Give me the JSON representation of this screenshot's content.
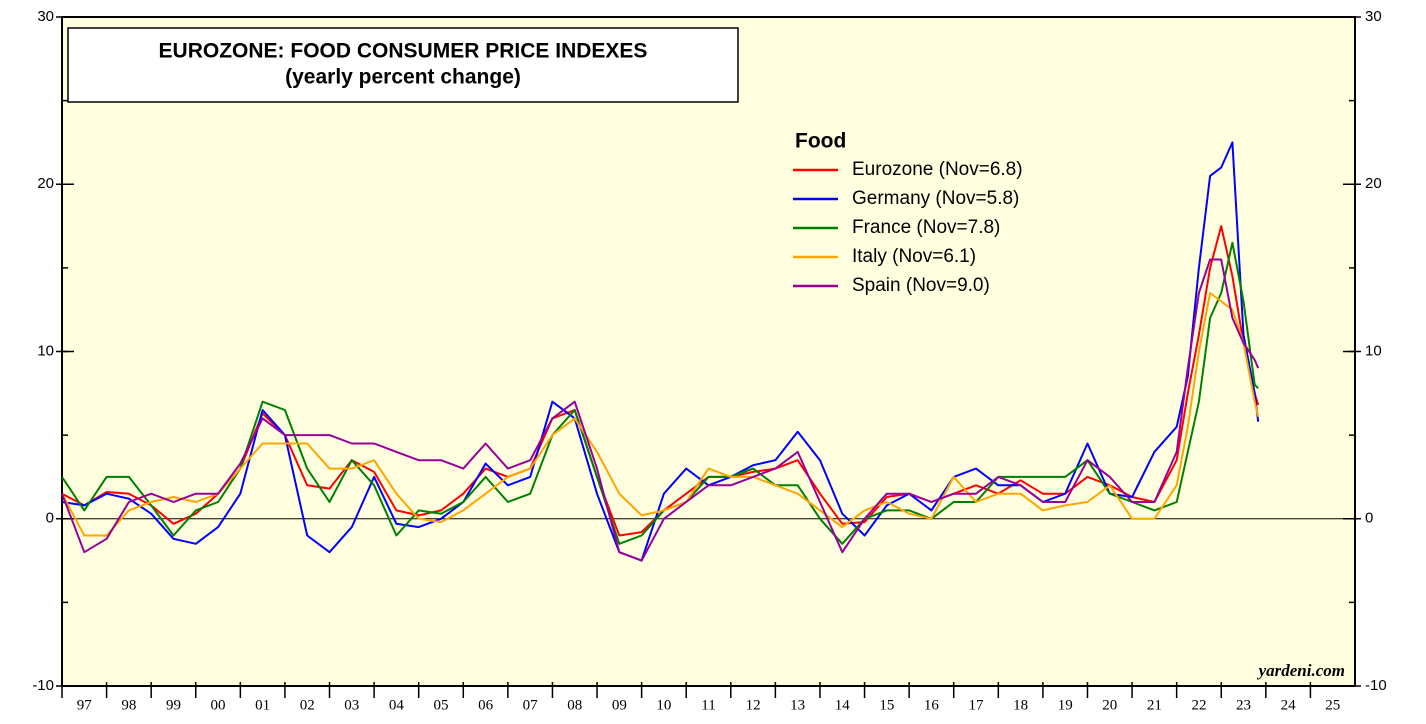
{
  "chart_data": {
    "type": "line",
    "title": "EUROZONE: FOOD CONSUMER PRICE INDEXES",
    "subtitle": "(yearly percent change)",
    "legend_title": "Food",
    "watermark": "yardeni.com",
    "x": [
      1997,
      1997.5,
      1998,
      1998.5,
      1999,
      1999.5,
      2000,
      2000.5,
      2001,
      2001.5,
      2002,
      2002.5,
      2003,
      2003.5,
      2004,
      2004.5,
      2005,
      2005.5,
      2006,
      2006.5,
      2007,
      2007.5,
      2008,
      2008.5,
      2009,
      2009.5,
      2010,
      2010.5,
      2011,
      2011.5,
      2012,
      2012.5,
      2013,
      2013.5,
      2014,
      2014.5,
      2015,
      2015.5,
      2016,
      2016.5,
      2017,
      2017.5,
      2018,
      2018.5,
      2019,
      2019.5,
      2020,
      2020.5,
      2021,
      2021.5,
      2022,
      2022.25,
      2022.5,
      2022.75,
      2023,
      2023.25,
      2023.5,
      2023.75,
      2023.83
    ],
    "series": [
      {
        "name": "Eurozone (Nov=6.8)",
        "color": "#ff0000",
        "values": [
          1.5,
          0.8,
          1.6,
          1.5,
          0.8,
          -0.3,
          0.3,
          1.5,
          3.0,
          6.3,
          5.0,
          2.0,
          1.8,
          3.5,
          2.8,
          0.5,
          0.2,
          0.5,
          1.5,
          3.0,
          2.5,
          3.0,
          6.0,
          6.5,
          2.5,
          -1.0,
          -0.8,
          0.5,
          1.5,
          2.5,
          2.5,
          2.8,
          3.0,
          3.5,
          1.5,
          -0.3,
          -0.2,
          1.3,
          1.5,
          1.0,
          1.5,
          2.0,
          1.5,
          2.3,
          1.5,
          1.5,
          2.5,
          2.0,
          1.3,
          1.0,
          3.5,
          7.5,
          11.0,
          15.0,
          17.5,
          14.5,
          10.5,
          7.5,
          6.8
        ]
      },
      {
        "name": "Germany (Nov=5.8)",
        "color": "#0000ff",
        "values": [
          1.0,
          0.8,
          1.5,
          1.2,
          0.3,
          -1.2,
          -1.5,
          -0.5,
          1.5,
          6.5,
          5.0,
          -1.0,
          -2.0,
          -0.5,
          2.5,
          -0.3,
          -0.5,
          0.0,
          1.0,
          3.3,
          2.0,
          2.5,
          7.0,
          6.0,
          1.5,
          -2.0,
          -2.5,
          1.5,
          3.0,
          2.0,
          2.5,
          3.2,
          3.5,
          5.2,
          3.5,
          0.3,
          -1.0,
          0.8,
          1.5,
          0.5,
          2.5,
          3.0,
          2.0,
          2.0,
          1.0,
          1.5,
          4.5,
          1.5,
          1.3,
          4.0,
          5.5,
          8.5,
          15.0,
          20.5,
          21.0,
          22.5,
          11.0,
          7.5,
          5.8
        ]
      },
      {
        "name": "France (Nov=7.8)",
        "color": "#008000",
        "values": [
          2.5,
          0.5,
          2.5,
          2.5,
          0.8,
          -1.0,
          0.5,
          1.0,
          3.0,
          7.0,
          6.5,
          3.0,
          1.0,
          3.5,
          2.0,
          -1.0,
          0.5,
          0.3,
          1.0,
          2.5,
          1.0,
          1.5,
          5.0,
          6.5,
          2.5,
          -1.5,
          -1.0,
          0.5,
          1.0,
          2.5,
          2.5,
          3.0,
          2.0,
          2.0,
          0.0,
          -1.5,
          0.0,
          0.5,
          0.5,
          0.0,
          1.0,
          1.0,
          2.5,
          2.5,
          2.5,
          2.5,
          3.5,
          1.5,
          1.0,
          0.5,
          1.0,
          4.0,
          7.0,
          12.0,
          13.5,
          16.5,
          13.0,
          8.0,
          7.8
        ]
      },
      {
        "name": "Italy (Nov=6.1)",
        "color": "#ffa500",
        "values": [
          1.5,
          -1.0,
          -1.0,
          0.5,
          1.0,
          1.3,
          1.0,
          1.5,
          3.0,
          4.5,
          4.5,
          4.5,
          3.0,
          3.0,
          3.5,
          1.5,
          0.0,
          -0.2,
          0.5,
          1.5,
          2.5,
          3.0,
          5.0,
          6.0,
          4.0,
          1.5,
          0.2,
          0.5,
          1.0,
          3.0,
          2.5,
          2.5,
          2.0,
          1.5,
          0.5,
          -0.5,
          0.5,
          1.0,
          0.3,
          0.0,
          2.5,
          1.0,
          1.5,
          1.5,
          0.5,
          0.8,
          1.0,
          2.0,
          0.0,
          0.0,
          2.0,
          5.5,
          10.0,
          13.5,
          13.0,
          12.5,
          10.5,
          7.0,
          6.1
        ]
      },
      {
        "name": "Spain (Nov=9.0)",
        "color": "#990099",
        "values": [
          1.5,
          -2.0,
          -1.2,
          1.0,
          1.5,
          1.0,
          1.5,
          1.5,
          3.3,
          6.0,
          5.0,
          5.0,
          5.0,
          4.5,
          4.5,
          4.0,
          3.5,
          3.5,
          3.0,
          4.5,
          3.0,
          3.5,
          6.0,
          7.0,
          3.0,
          -2.0,
          -2.5,
          0.0,
          1.0,
          2.0,
          2.0,
          2.5,
          3.0,
          4.0,
          1.0,
          -2.0,
          0.0,
          1.5,
          1.5,
          1.0,
          1.5,
          1.5,
          2.5,
          2.0,
          1.0,
          1.0,
          3.5,
          2.5,
          1.0,
          1.0,
          4.0,
          9.0,
          13.5,
          15.5,
          15.5,
          12.0,
          10.5,
          9.5,
          9.0
        ]
      }
    ],
    "xlim": [
      1997,
      2026
    ],
    "xticks": [
      {
        "value": 1997,
        "label": "97"
      },
      {
        "value": 1998,
        "label": "98"
      },
      {
        "value": 1999,
        "label": "99"
      },
      {
        "value": 2000,
        "label": "00"
      },
      {
        "value": 2001,
        "label": "01"
      },
      {
        "value": 2002,
        "label": "02"
      },
      {
        "value": 2003,
        "label": "03"
      },
      {
        "value": 2004,
        "label": "04"
      },
      {
        "value": 2005,
        "label": "05"
      },
      {
        "value": 2006,
        "label": "06"
      },
      {
        "value": 2007,
        "label": "07"
      },
      {
        "value": 2008,
        "label": "08"
      },
      {
        "value": 2009,
        "label": "09"
      },
      {
        "value": 2010,
        "label": "10"
      },
      {
        "value": 2011,
        "label": "11"
      },
      {
        "value": 2012,
        "label": "12"
      },
      {
        "value": 2013,
        "label": "13"
      },
      {
        "value": 2014,
        "label": "14"
      },
      {
        "value": 2015,
        "label": "15"
      },
      {
        "value": 2016,
        "label": "16"
      },
      {
        "value": 2017,
        "label": "17"
      },
      {
        "value": 2018,
        "label": "18"
      },
      {
        "value": 2019,
        "label": "19"
      },
      {
        "value": 2020,
        "label": "20"
      },
      {
        "value": 2021,
        "label": "21"
      },
      {
        "value": 2022,
        "label": "22"
      },
      {
        "value": 2023,
        "label": "23"
      },
      {
        "value": 2024,
        "label": "24"
      },
      {
        "value": 2025,
        "label": "25"
      }
    ],
    "ylim": [
      -10,
      30
    ],
    "yticks": [
      -10,
      0,
      10,
      20,
      30
    ],
    "y2lim": [
      -10,
      30
    ],
    "y2ticks": [
      -10,
      0,
      10,
      20,
      30
    ],
    "background": "#ffffe0"
  }
}
